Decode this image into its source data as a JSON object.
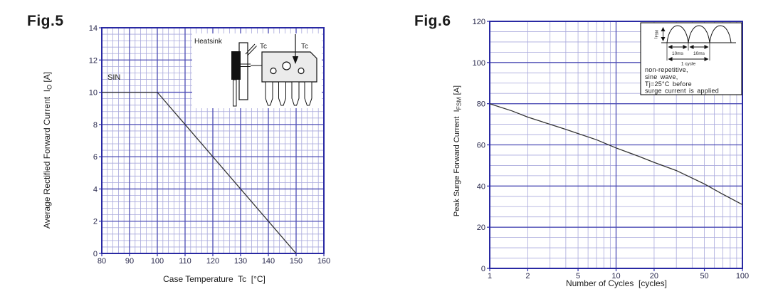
{
  "page": {
    "background": "#ffffff"
  },
  "colors": {
    "ink": "#1a1a1a",
    "tick": "#26264a",
    "grid_minor": "#a9a9dc",
    "grid_major": "#4c4cb4",
    "border": "#2929a3",
    "curve": "#333333",
    "inset_fill": "#ffffff",
    "package_fill": "#ebebeb"
  },
  "chart_data": [
    {
      "id": "fig5",
      "type": "line",
      "fig_label": "Fig.5",
      "xlabel": "Case Temperature  Tc  [°C]",
      "ylabel_main": "Average Rectified Forward Current  I",
      "ylabel_sub": "O",
      "ylabel_unit": " [A]",
      "x_scale": "linear",
      "xlim": [
        80,
        160
      ],
      "ylim": [
        0,
        14
      ],
      "x_ticks": [
        80,
        90,
        100,
        110,
        120,
        130,
        140,
        150,
        160
      ],
      "y_ticks": [
        0,
        2,
        4,
        6,
        8,
        10,
        12,
        14
      ],
      "x_minor_step": 2,
      "x_major_step": 10,
      "y_minor_step": 0.4,
      "y_major_step": 2,
      "grid": "on",
      "curve_label": "SIN",
      "series": [
        {
          "name": "SIN",
          "x": [
            80,
            100,
            150
          ],
          "y": [
            10,
            10,
            0
          ]
        }
      ],
      "inset": {
        "heatsink": "Heatsink",
        "tc1": "Tc",
        "tc2": "Tc"
      }
    },
    {
      "id": "fig6",
      "type": "line",
      "fig_label": "Fig.6",
      "xlabel": "Number of Cycles  [cycles]",
      "ylabel_main": "Peak Surge Forward Current  I",
      "ylabel_sub": "FSM",
      "ylabel_unit": " [A]",
      "x_scale": "log",
      "xlim": [
        1,
        100
      ],
      "ylim": [
        0,
        120
      ],
      "x_ticks": [
        1,
        2,
        5,
        10,
        20,
        50,
        100
      ],
      "y_ticks": [
        0,
        20,
        40,
        60,
        80,
        100,
        120
      ],
      "y_minor_step": 5,
      "y_major_step": 20,
      "grid": "on",
      "series": [
        {
          "name": "IFSM",
          "x": [
            1,
            1.5,
            2,
            3,
            4,
            5,
            7,
            10,
            15,
            20,
            30,
            50,
            70,
            100
          ],
          "y": [
            80,
            76.5,
            73.5,
            70,
            67.5,
            65.5,
            62.5,
            58.5,
            54.5,
            51.5,
            47.5,
            41,
            36,
            31
          ]
        }
      ],
      "inset": {
        "ifsm_main": "I",
        "ifsm_sub": "FSM",
        "ms1": "10ms",
        "ms2": "10ms",
        "cycle": "1 cycle",
        "lines": [
          "non-repetitive,",
          "sine wave,",
          "Tj=25°C before",
          "surge current is applied"
        ]
      }
    }
  ]
}
